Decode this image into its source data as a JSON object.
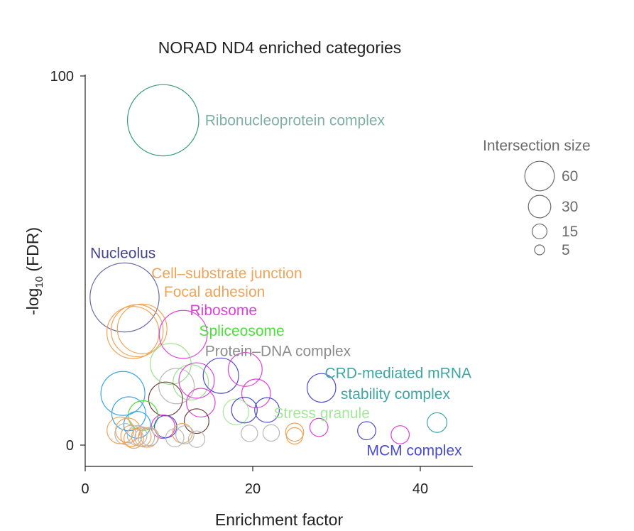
{
  "chart_data": {
    "type": "scatter",
    "title": "NORAD ND4 enriched categories",
    "xlabel": "Enrichment factor",
    "ylabel": "-log10 (FDR)",
    "xlim": [
      0,
      45
    ],
    "ylim": [
      -5,
      100
    ],
    "xticks": [
      0,
      20,
      40
    ],
    "yticks": [
      0,
      100
    ],
    "grid": false,
    "size_legend": {
      "title": "Intersection size",
      "placement": "right",
      "entries": [
        60,
        30,
        15,
        5
      ]
    },
    "labels": [
      {
        "text": "Ribonucleoprotein complex",
        "x": 14.3,
        "y": 88,
        "color": "#7fb0a4"
      },
      {
        "text": "Nucleolus",
        "x": 0.6,
        "y": 52,
        "color": "#45458a"
      },
      {
        "text": "Cell–substrate junction",
        "x": 7.9,
        "y": 46.5,
        "color": "#f0a45a"
      },
      {
        "text": "Focal adhesion",
        "x": 9.4,
        "y": 41.5,
        "color": "#f0a45a"
      },
      {
        "text": "Ribosome",
        "x": 12.5,
        "y": 36.5,
        "color": "#e040d8"
      },
      {
        "text": "Spliceosome",
        "x": 13.6,
        "y": 31,
        "color": "#4ede3c"
      },
      {
        "text": "Protein–DNA complex",
        "x": 14.3,
        "y": 25.5,
        "color": "#8c8c8c"
      },
      {
        "text": "CRD-mediated mRNA",
        "x": 28.6,
        "y": 19.5,
        "color": "#3fa6a2"
      },
      {
        "text": "stability complex",
        "x": 30.5,
        "y": 13.8,
        "color": "#3fa6a2"
      },
      {
        "text": "Stress granule",
        "x": 22.5,
        "y": 8.7,
        "color": "#a4e89a"
      },
      {
        "text": "MCM complex",
        "x": 33.6,
        "y": -1.4,
        "color": "#4a4ad0"
      }
    ],
    "series": [
      {
        "x": 9.3,
        "y": 88,
        "size": 96,
        "color": "#3a9c7e"
      },
      {
        "x": 4.7,
        "y": 40,
        "size": 90,
        "color": "#6a6aa6"
      },
      {
        "x": 6.2,
        "y": 31,
        "size": 50,
        "color": "#f0a45a"
      },
      {
        "x": 6.8,
        "y": 31.5,
        "size": 45,
        "color": "#f0a45a"
      },
      {
        "x": 5.7,
        "y": 30.5,
        "size": 50,
        "color": "#f0a45a"
      },
      {
        "x": 11.7,
        "y": 30,
        "size": 42,
        "color": "#e040d8"
      },
      {
        "x": 10.2,
        "y": 22,
        "size": 30,
        "color": "#9ce08e"
      },
      {
        "x": 4.5,
        "y": 14,
        "size": 35,
        "color": "#3aa6e6"
      },
      {
        "x": 10.9,
        "y": 16,
        "size": 22,
        "color": "#b8b8b8"
      },
      {
        "x": 12.6,
        "y": 17,
        "size": 22,
        "color": "#9ce08e"
      },
      {
        "x": 13.3,
        "y": 17.5,
        "size": 22,
        "color": "#e040d8"
      },
      {
        "x": 16.2,
        "y": 18.8,
        "size": 22,
        "color": "#4a4ad0"
      },
      {
        "x": 19.1,
        "y": 20.5,
        "size": 20,
        "color": "#e040d8"
      },
      {
        "x": 20.4,
        "y": 14,
        "size": 14,
        "color": "#e040d8"
      },
      {
        "x": 9.6,
        "y": 12.5,
        "size": 20,
        "color": "#6b4040"
      },
      {
        "x": 13.8,
        "y": 11.5,
        "size": 14,
        "color": "#e040d8"
      },
      {
        "x": 28.2,
        "y": 15.5,
        "size": 14,
        "color": "#4a4ad0"
      },
      {
        "x": 5.2,
        "y": 8.5,
        "size": 20,
        "color": "#3aa6e6"
      },
      {
        "x": 6.9,
        "y": 8,
        "size": 15,
        "color": "#4ede3c"
      },
      {
        "x": 6.2,
        "y": 5.5,
        "size": 12,
        "color": "#3aa6e6"
      },
      {
        "x": 18.0,
        "y": 9,
        "size": 11,
        "color": "#a4e89a"
      },
      {
        "x": 19.0,
        "y": 9.5,
        "size": 11,
        "color": "#4a4ad0"
      },
      {
        "x": 21.7,
        "y": 9.5,
        "size": 10,
        "color": "#4a4ad0"
      },
      {
        "x": 13.3,
        "y": 6.5,
        "size": 10,
        "color": "#6b4040"
      },
      {
        "x": 9.3,
        "y": 5,
        "size": 9,
        "color": "#e040d8"
      },
      {
        "x": 9.6,
        "y": 5,
        "size": 8,
        "color": "#4a4ad0"
      },
      {
        "x": 4.2,
        "y": 4,
        "size": 12,
        "color": "#f0a45a"
      },
      {
        "x": 5.1,
        "y": 4,
        "size": 10,
        "color": "#f0a45a"
      },
      {
        "x": 4.8,
        "y": 3,
        "size": 7,
        "color": "#b8b8b8"
      },
      {
        "x": 5.5,
        "y": 2.5,
        "size": 7,
        "color": "#f0a45a"
      },
      {
        "x": 5.8,
        "y": 1.8,
        "size": 6,
        "color": "#f0a45a"
      },
      {
        "x": 6.2,
        "y": 2.6,
        "size": 6,
        "color": "#b8b8b8"
      },
      {
        "x": 6.7,
        "y": 2.3,
        "size": 6,
        "color": "#f0a45a"
      },
      {
        "x": 7.1,
        "y": 2.1,
        "size": 6,
        "color": "#b8b8b8"
      },
      {
        "x": 7.5,
        "y": 2.1,
        "size": 6,
        "color": "#f0a45a"
      },
      {
        "x": 7.7,
        "y": 2.3,
        "size": 5,
        "color": "#b8b8b8"
      },
      {
        "x": 11.6,
        "y": 3.2,
        "size": 6,
        "color": "#f0a45a"
      },
      {
        "x": 11.9,
        "y": 2.8,
        "size": 5,
        "color": "#b8b8b8"
      },
      {
        "x": 10.7,
        "y": 2,
        "size": 5,
        "color": "#b8b8b8"
      },
      {
        "x": 13.3,
        "y": 1.6,
        "size": 4,
        "color": "#b8b8b8"
      },
      {
        "x": 19.6,
        "y": 3.2,
        "size": 4,
        "color": "#b8b8b8"
      },
      {
        "x": 22.2,
        "y": 3.3,
        "size": 4,
        "color": "#b8b8b8"
      },
      {
        "x": 25.0,
        "y": 3.5,
        "size": 5,
        "color": "#f0a45a"
      },
      {
        "x": 25.0,
        "y": 2.5,
        "size": 4,
        "color": "#f0a45a"
      },
      {
        "x": 27.9,
        "y": 4.8,
        "size": 5,
        "color": "#e040d8"
      },
      {
        "x": 33.6,
        "y": 3.9,
        "size": 5,
        "color": "#4a4ad0"
      },
      {
        "x": 37.6,
        "y": 2.8,
        "size": 5,
        "color": "#e040d8"
      },
      {
        "x": 42.0,
        "y": 6.1,
        "size": 6,
        "color": "#3fa6a2"
      }
    ]
  }
}
